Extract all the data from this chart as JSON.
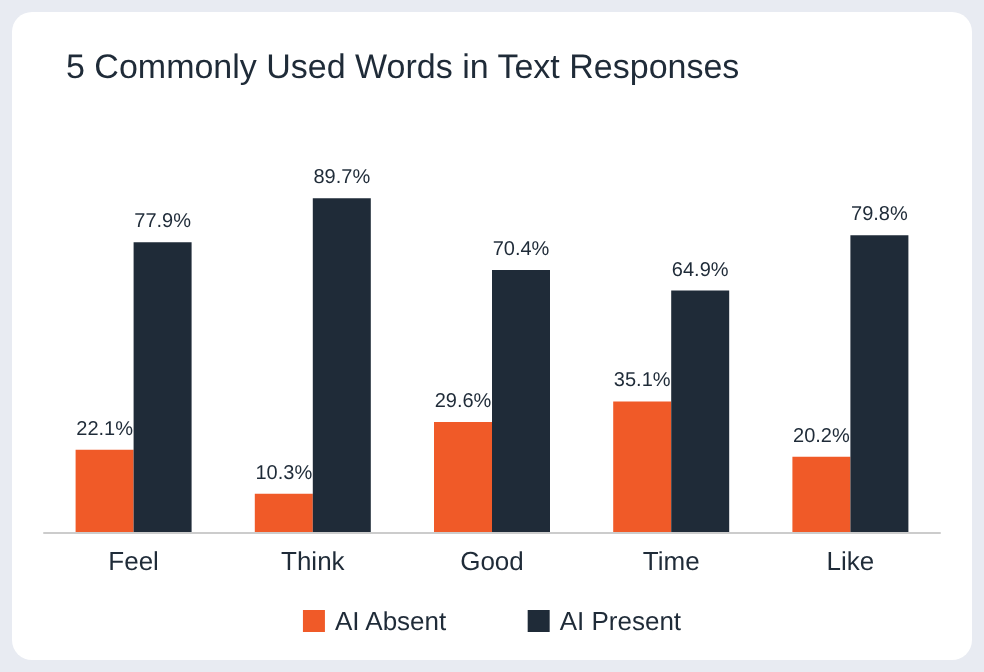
{
  "chart_data": {
    "type": "bar",
    "title": "5 Commonly Used Words in Text Responses",
    "categories": [
      "Feel",
      "Think",
      "Good",
      "Time",
      "Like"
    ],
    "series": [
      {
        "name": "AI Absent",
        "color": "#f05a28",
        "values": [
          22.1,
          10.3,
          29.6,
          35.1,
          20.2
        ],
        "value_labels": [
          "22.1%",
          "10.3%",
          "29.6%",
          "35.1%",
          "20.2%"
        ]
      },
      {
        "name": "AI Present",
        "color": "#1f2b38",
        "values": [
          77.9,
          89.7,
          70.4,
          64.9,
          79.8
        ],
        "value_labels": [
          "77.9%",
          "89.7%",
          "70.4%",
          "64.9%",
          "79.8%"
        ]
      }
    ],
    "legend": "bottom"
  }
}
